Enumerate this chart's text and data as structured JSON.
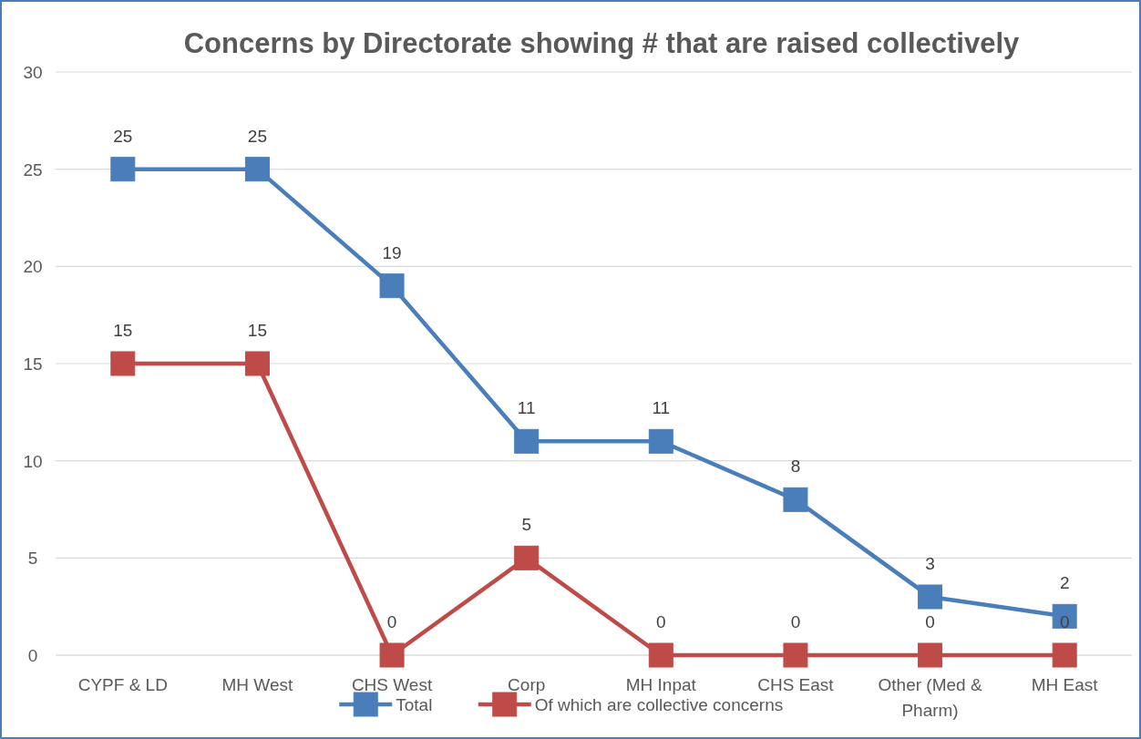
{
  "chart_data": {
    "type": "line",
    "title": "Concerns by Directorate showing # that are raised collectively",
    "categories": [
      "CYPF & LD",
      "MH West",
      "CHS West",
      "Corp",
      "MH Inpat",
      "CHS East",
      "Other (Med & Pharm)",
      "MH East"
    ],
    "series": [
      {
        "name": "Total",
        "color": "#4a7ebb",
        "values": [
          25,
          25,
          19,
          11,
          11,
          8,
          3,
          2
        ]
      },
      {
        "name": "Of which are collective concerns",
        "color": "#be4b48",
        "values": [
          15,
          15,
          0,
          5,
          0,
          0,
          0,
          0
        ]
      }
    ],
    "ylim": [
      0,
      30
    ],
    "yticks": [
      0,
      5,
      10,
      15,
      20,
      25,
      30
    ],
    "grid": "y",
    "legend": "bottom",
    "marker": "square",
    "line_style": "solid",
    "data_labels": true
  }
}
